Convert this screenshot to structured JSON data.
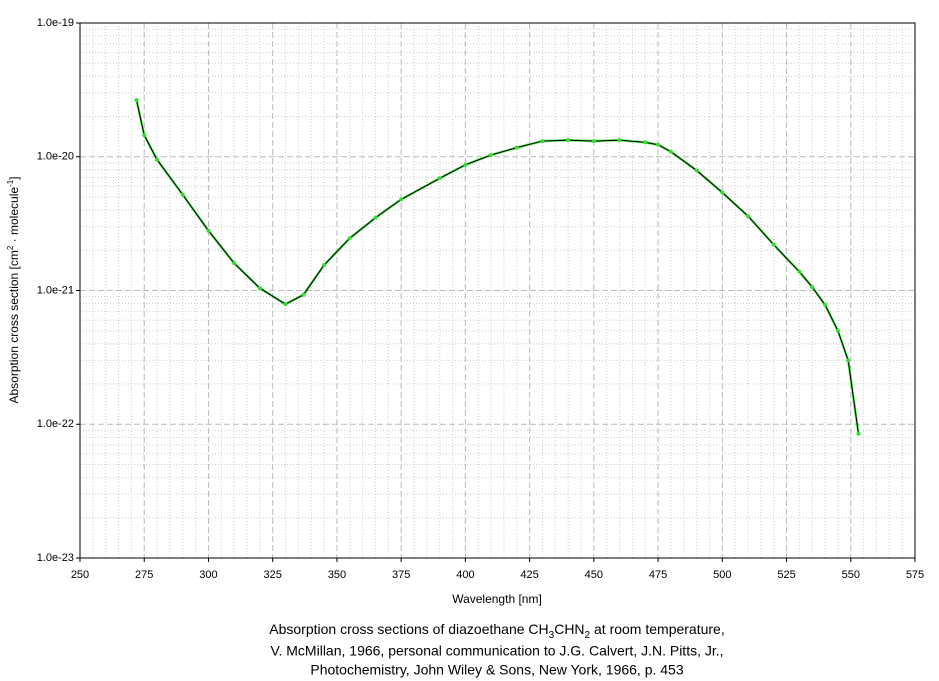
{
  "chart_data": {
    "type": "line",
    "title_parts": [
      "Absorption cross sections of diazoethane CH",
      "3",
      "CHN",
      "2",
      " at room temperature,"
    ],
    "caption": [
      "V. McMillan, 1966, personal communication to J.G. Calvert, J.N. Pitts, Jr.,",
      "Photochemistry, John Wiley & Sons, New York, 1966, p. 453"
    ],
    "x_label": "Wavelength [nm]",
    "y_label_parts": [
      "Absorption cross section [cm",
      "2",
      " · molecule",
      "-1",
      "]"
    ],
    "x": [
      272,
      275,
      280,
      290,
      300,
      310,
      320,
      330,
      337,
      345,
      355,
      365,
      375,
      390,
      400,
      410,
      420,
      430,
      440,
      450,
      460,
      470,
      475,
      480,
      490,
      500,
      510,
      520,
      530,
      535,
      540,
      545,
      549,
      553
    ],
    "series": [
      {
        "color": "#33dd33",
        "line_color": "#000000",
        "values": [
          2.65e-20,
          1.45e-20,
          9.5e-21,
          5.2e-21,
          2.8e-21,
          1.6e-21,
          1.04e-21,
          7.9e-22,
          9.3e-22,
          1.55e-21,
          2.46e-21,
          3.5e-21,
          4.8e-21,
          6.9e-21,
          8.7e-21,
          1.03e-20,
          1.17e-20,
          1.31e-20,
          1.33e-20,
          1.31e-20,
          1.33e-20,
          1.28e-20,
          1.23e-20,
          1.09e-20,
          7.9e-21,
          5.4e-21,
          3.6e-21,
          2.2e-21,
          1.38e-21,
          1.06e-21,
          7.8e-22,
          5e-22,
          3e-22,
          8.5e-23
        ]
      }
    ],
    "xlim": [
      250,
      575
    ],
    "xticks": [
      250,
      275,
      300,
      325,
      350,
      375,
      400,
      425,
      450,
      475,
      500,
      525,
      550,
      575
    ],
    "ylim": [
      1e-23,
      1e-19
    ],
    "yticks": [
      {
        "value": 1e-23,
        "label": "1.0e-23"
      },
      {
        "value": 1e-22,
        "label": "1.0e-22"
      },
      {
        "value": 1e-21,
        "label": "1.0e-21"
      },
      {
        "value": 1e-20,
        "label": "1.0e-20"
      },
      {
        "value": 1e-19,
        "label": "1.0e-19"
      }
    ],
    "y_log": true,
    "grid": true
  }
}
